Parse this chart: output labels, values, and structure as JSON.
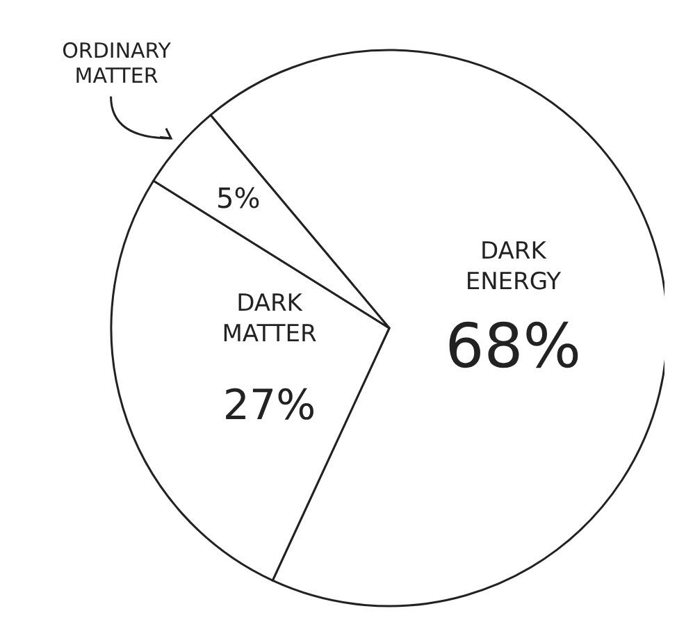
{
  "chart_data": {
    "type": "pie",
    "categories": [
      "DARK ENERGY",
      "DARK MATTER",
      "ORDINARY MATTER"
    ],
    "values": [
      68,
      27,
      5
    ],
    "value_labels": [
      "68%",
      "27%",
      "5%"
    ],
    "colors": [
      "#ffffff",
      "#ffffff",
      "#ffffff"
    ]
  }
}
